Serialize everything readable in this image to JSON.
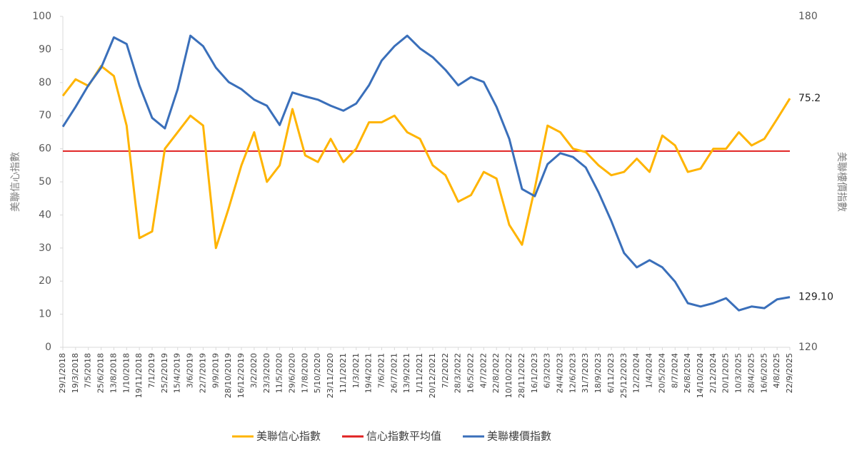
{
  "chart_data": {
    "type": "line",
    "y_label": "美聯信心指數",
    "y2_label": "美聯樓價指數",
    "categories": [
      "29/1/2018",
      "19/3/2018",
      "7/5/2018",
      "25/6/2018",
      "13/8/2018",
      "1/10/2018",
      "19/11/2018",
      "7/1/2019",
      "25/2/2019",
      "15/4/2019",
      "3/6/2019",
      "22/7/2019",
      "9/9/2019",
      "28/10/2019",
      "16/12/2019",
      "3/2/2020",
      "23/3/2020",
      "11/5/2020",
      "29/6/2020",
      "17/8/2020",
      "5/10/2020",
      "23/11/2020",
      "11/1/2021",
      "1/3/2021",
      "19/4/2021",
      "7/6/2021",
      "26/7/2021",
      "13/9/2021",
      "1/11/2021",
      "20/12/2021",
      "7/2/2022",
      "28/3/2022",
      "16/5/2022",
      "4/7/2022",
      "22/8/2022",
      "10/10/2022",
      "28/11/2022",
      "16/1/2023",
      "6/3/2023",
      "24/4/2023",
      "12/6/2023",
      "31/7/2023",
      "18/9/2023",
      "6/11/2023",
      "25/12/2023",
      "12/2/2024",
      "1/4/2024",
      "20/5/2024",
      "8/7/2024",
      "26/8/2024",
      "14/10/2024",
      "2/12/2024",
      "20/1/2025",
      "10/3/2025",
      "28/4/2025",
      "16/6/2025",
      "4/8/2025",
      "22/9/2025"
    ],
    "series": [
      {
        "name": "美聯信心指數",
        "color": "#ffb400",
        "last_label": "75.2",
        "values": [
          76,
          81,
          79,
          85,
          82,
          67,
          33,
          35,
          60,
          65,
          70,
          67,
          30,
          42,
          55,
          65,
          50,
          55,
          72,
          58,
          56,
          63,
          56,
          60,
          68,
          68,
          70,
          65,
          63,
          55,
          52,
          44,
          46,
          53,
          51,
          37,
          31,
          48,
          67,
          65,
          60,
          59,
          55,
          52,
          53,
          57,
          53,
          64,
          61,
          53,
          54,
          60,
          60,
          65,
          61,
          63,
          69,
          75.2
        ]
      },
      {
        "name": "美聯樓價指數",
        "color": "#3a6fba",
        "axis": "y2",
        "last_label": "129.10",
        "values": [
          160,
          163.6,
          167.5,
          170.7,
          176.2,
          175,
          167.5,
          161.6,
          159.7,
          166.8,
          176.5,
          174.6,
          170.7,
          168.1,
          166.8,
          164.9,
          163.8,
          160.3,
          166.2,
          165.5,
          164.9,
          163.8,
          162.9,
          164.2,
          167.5,
          172,
          174.6,
          176.5,
          174.2,
          172.6,
          170.3,
          167.5,
          169,
          168.1,
          163.6,
          157.8,
          148.7,
          147.4,
          153.2,
          155.2,
          154.5,
          152.6,
          148.1,
          142.9,
          137.1,
          134.5,
          135.8,
          134.5,
          131.9,
          128,
          127.4,
          128,
          128.9,
          126.7,
          127.4,
          127.1,
          128.7,
          129.1
        ]
      }
    ],
    "hlines": [
      {
        "name": "信心指數平均值",
        "color": "#e02020",
        "value": 59.3
      }
    ],
    "ylim": [
      0,
      100
    ],
    "yticks": [
      0,
      10,
      20,
      30,
      40,
      50,
      60,
      70,
      80,
      90,
      100
    ],
    "y2lim": [
      120,
      180
    ],
    "y2ticks": [
      120,
      180
    ]
  }
}
